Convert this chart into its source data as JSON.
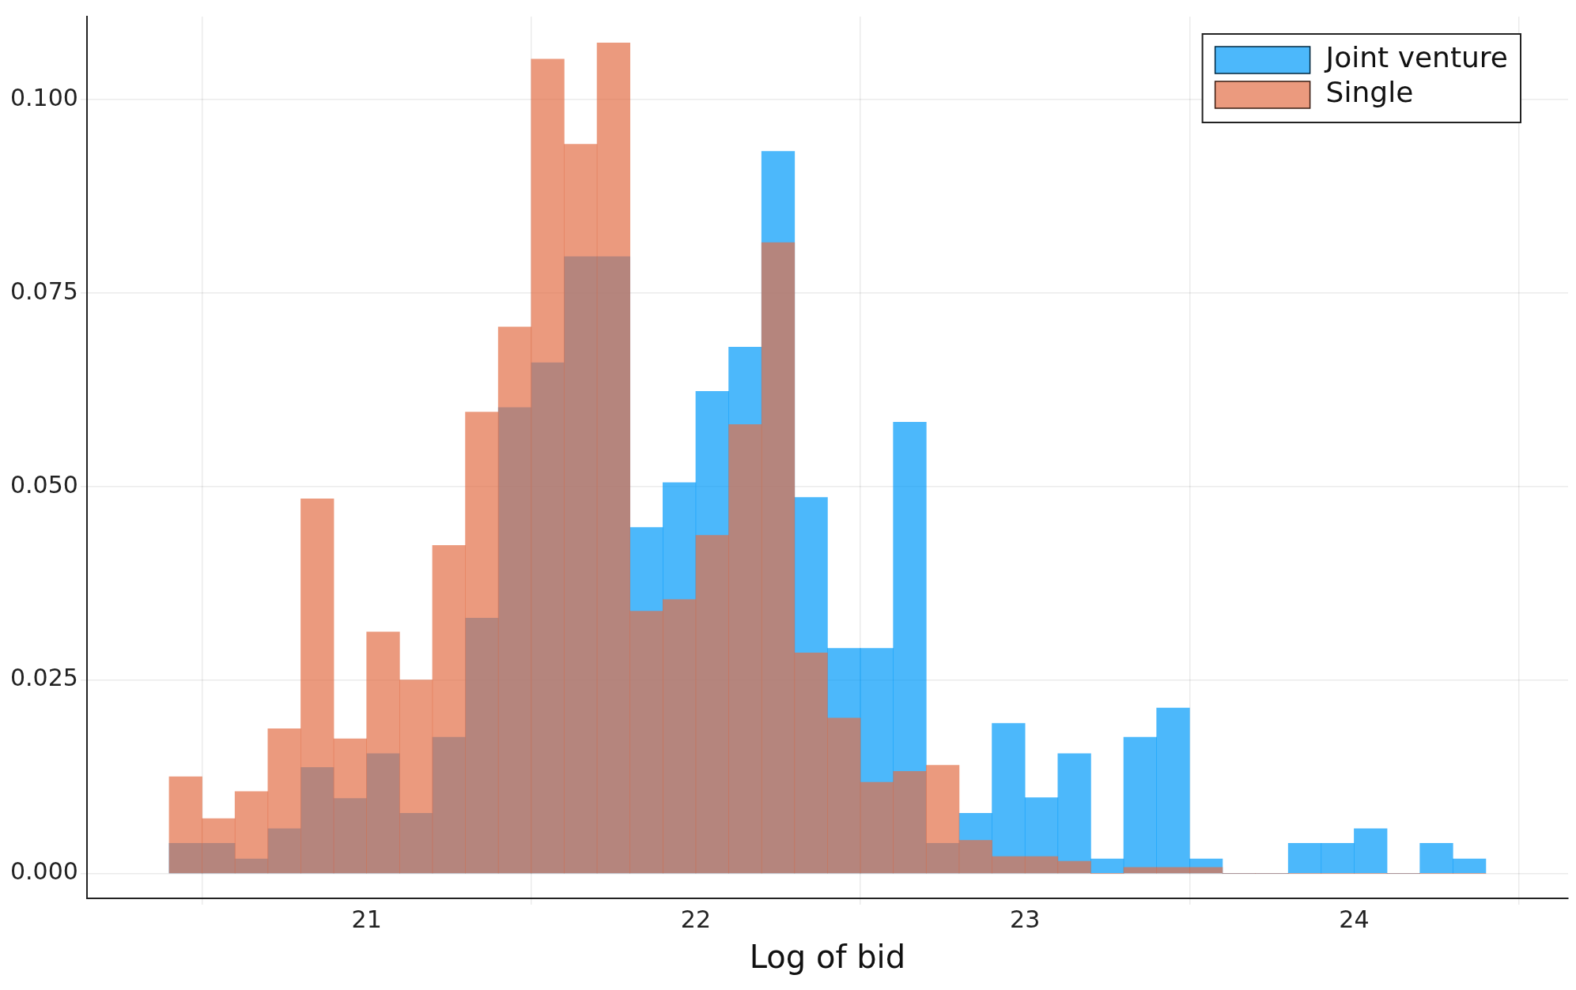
{
  "chart_data": {
    "type": "histogram",
    "xlabel": "Log of bid",
    "bins": [
      20.4,
      20.5,
      20.6,
      20.7,
      20.8,
      20.9,
      21.0,
      21.1,
      21.2,
      21.3,
      21.4,
      21.5,
      21.6,
      21.7,
      21.8,
      21.9,
      22.0,
      22.1,
      22.2,
      22.3,
      22.4,
      22.5,
      22.6,
      22.7,
      22.8,
      22.9,
      23.0,
      23.1,
      23.2,
      23.3,
      23.4,
      23.5,
      23.6,
      23.7,
      23.8,
      23.9,
      24.0,
      24.1,
      24.2,
      24.3,
      24.4
    ],
    "series": [
      {
        "name": "Joint venture",
        "color": "#009afa",
        "values": [
          0.0039,
          0.0039,
          0.0019,
          0.0058,
          0.0137,
          0.0097,
          0.0155,
          0.0078,
          0.0176,
          0.033,
          0.0602,
          0.066,
          0.0797,
          0.0797,
          0.0447,
          0.0505,
          0.0623,
          0.068,
          0.0933,
          0.0486,
          0.0291,
          0.0291,
          0.0583,
          0.0039,
          0.0078,
          0.0194,
          0.0098,
          0.0155,
          0.0019,
          0.0176,
          0.0214,
          0.0019,
          0,
          0,
          0.0039,
          0.0039,
          0.0058,
          0,
          0.0039,
          0.0019
        ]
      },
      {
        "name": "Single",
        "color": "#e36f47",
        "values": [
          0.0125,
          0.0071,
          0.0106,
          0.0187,
          0.0484,
          0.0174,
          0.0312,
          0.025,
          0.0424,
          0.0596,
          0.0706,
          0.1052,
          0.0942,
          0.1073,
          0.0339,
          0.0354,
          0.0437,
          0.058,
          0.0815,
          0.0285,
          0.0201,
          0.0118,
          0.0132,
          0.014,
          0.0043,
          0.0022,
          0.0022,
          0.0016,
          0,
          0.0008,
          0.0008,
          0.0008,
          0,
          0,
          0,
          0,
          0,
          0,
          0,
          0
        ]
      }
    ],
    "xlim": [
      20.15,
      24.65
    ],
    "xticks": [
      21,
      22,
      23,
      24
    ],
    "ylim": [
      -0.0032,
      0.1107
    ],
    "yticks": [
      {
        "value": 0,
        "label": "0.000"
      },
      0.025,
      {
        "value": 0.05,
        "label": "0.050"
      },
      0.075,
      {
        "value": 0.1,
        "label": "0.100"
      }
    ],
    "grid": true,
    "legend": "top right"
  }
}
